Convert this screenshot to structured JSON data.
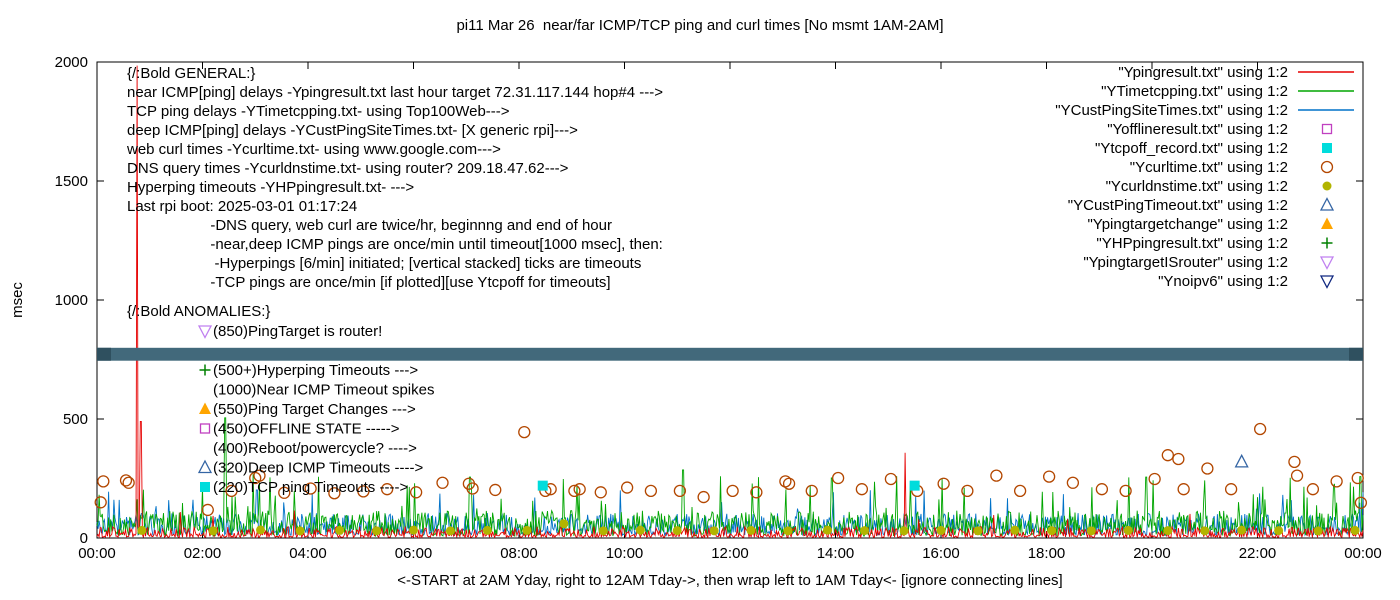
{
  "title": "pi11 Mar 26  near/far ICMP/TCP ping and curl times [No msmt 1AM-2AM]",
  "xlabel": "<-START at 2AM Yday, right to 12AM Tday->, then wrap left to 1AM Tday<- [ignore connecting lines]",
  "ylabel": "msec",
  "legend": [
    {
      "label": "\"Ypingresult.txt\" using 1:2",
      "marker": "line",
      "color": "#e60000"
    },
    {
      "label": "\"YTimetcpping.txt\" using 1:2",
      "marker": "line",
      "color": "#00a500"
    },
    {
      "label": "\"YCustPingSiteTimes.txt\" using 1:2",
      "marker": "line",
      "color": "#0072c8"
    },
    {
      "label": "\"Yofflineresult.txt\" using 1:2",
      "marker": "square-open",
      "color": "#c040c0"
    },
    {
      "label": "\"Ytcpoff_record.txt\" using 1:2",
      "marker": "square-filled",
      "color": "#00dcdc"
    },
    {
      "label": "\"Ycurltime.txt\" using 1:2",
      "marker": "circle-open",
      "color": "#b34700"
    },
    {
      "label": "\"Ycurldnstime.txt\" using 1:2",
      "marker": "circle-filled",
      "color": "#b2b400"
    },
    {
      "label": "\"YCustPingTimeout.txt\" using 1:2",
      "marker": "triangle-open",
      "color": "#3465a4"
    },
    {
      "label": "\"Ypingtargetchange\" using 1:2",
      "marker": "triangle-filled",
      "color": "#ffa500"
    },
    {
      "label": "\"YHPpingresult.txt\" using 1:2",
      "marker": "plus",
      "color": "#008000"
    },
    {
      "label": "\"YpingtargetISrouter\" using 1:2",
      "marker": "triangle-down-open",
      "color": "#c080f0"
    },
    {
      "label": "\"Ynoipv6\" using 1:2",
      "marker": "triangle-down-open",
      "color": "#102880"
    }
  ],
  "annotations": {
    "general_header": "{/:Bold GENERAL:}",
    "general": [
      "near ICMP[ping] delays -Ypingresult.txt last hour target 72.31.117.144 hop#4 --->",
      "TCP ping delays -YTimetcpping.txt- using Top100Web--->",
      "deep ICMP[ping] delays -YCustPingSiteTimes.txt- [X generic rpi]--->",
      "web curl times -Ycurltime.txt- using www.google.com--->",
      "DNS query times -Ycurldnstime.txt- using router? 209.18.47.62--->",
      "Hyperping timeouts -YHPpingresult.txt- --->",
      "Last rpi boot: 2025-03-01 01:17:24",
      "                    -DNS query, web curl are twice/hr, beginnng and end of hour",
      "                    -near,deep ICMP pings are once/min until timeout[1000 msec], then:",
      "                     -Hyperpings [6/min] initiated; [vertical stacked] ticks are timeouts",
      "                    -TCP pings are once/min [if plotted][use Ytcpoff for timeouts]"
    ],
    "anomalies_header": "{/:Bold ANOMALIES:}",
    "anomalies": [
      {
        "row": 0,
        "icon": "triangle-down-open",
        "color": "#c080f0",
        "text": "(850)PingTarget is router!"
      },
      {
        "row": 2,
        "icon": "plus",
        "color": "#008000",
        "text": "(500+)Hyperping Timeouts --->"
      },
      {
        "row": 3,
        "icon": null,
        "color": null,
        "text": "(1000)Near ICMP Timeout spikes"
      },
      {
        "row": 4,
        "icon": "triangle-filled",
        "color": "#ffa500",
        "text": "(550)Ping Target Changes --->"
      },
      {
        "row": 5,
        "icon": "square-open",
        "color": "#c040c0",
        "text": "(450)OFFLINE STATE ----->"
      },
      {
        "row": 6,
        "icon": null,
        "color": null,
        "text": "(400)Reboot/powercycle? ---->"
      },
      {
        "row": 7,
        "icon": "triangle-open",
        "color": "#3465a4",
        "text": "(320)Deep ICMP Timeouts ---->"
      },
      {
        "row": 8,
        "icon": "square-filled",
        "color": "#00dcdc",
        "text": "(220)TCP ping Timeouts ---->"
      }
    ]
  },
  "chart_data": {
    "type": "line",
    "xlim": [
      0,
      24
    ],
    "ylim": [
      0,
      2000
    ],
    "x_ticks": [
      "00:00",
      "02:00",
      "04:00",
      "06:00",
      "08:00",
      "10:00",
      "12:00",
      "14:00",
      "16:00",
      "18:00",
      "20:00",
      "22:00",
      "00:00"
    ],
    "y_ticks": [
      0,
      500,
      1000,
      1500,
      2000
    ],
    "legend_position": "top-right-inside",
    "grid": false,
    "band": {
      "name": "stacked-timeout-band",
      "y_msec": 772,
      "half_msec": 27,
      "color": "#42697b",
      "cap_color": "#2f505f"
    },
    "series": [
      {
        "name": "YCustPingSiteTimes",
        "type": "line",
        "color": "#0072c8",
        "baseline": [
          12,
          105
        ],
        "noise_pow": 1.6,
        "minor_spikes": {
          "every_h": 1.4,
          "range": [
            120,
            205
          ]
        },
        "spikes": [
          [
            0.42,
            160
          ],
          [
            3.03,
            202
          ],
          [
            8.3,
            170
          ]
        ]
      },
      {
        "name": "YTimetcpping",
        "type": "line",
        "color": "#00a500",
        "baseline": [
          8,
          115
        ],
        "noise_pow": 1.35,
        "minor_spikes": {
          "every_h": 0.38,
          "range": [
            120,
            260
          ]
        },
        "spikes": [
          [
            2.43,
            505
          ],
          [
            2.96,
            268
          ],
          [
            7.07,
            256
          ],
          [
            11.11,
            286
          ],
          [
            13.93,
            252
          ],
          [
            16.02,
            248
          ],
          [
            19.89,
            256
          ],
          [
            21.0,
            242
          ],
          [
            23.95,
            258
          ]
        ]
      },
      {
        "name": "Ypingresult",
        "type": "line",
        "color": "#e60000",
        "baseline": [
          3,
          48
        ],
        "noise_pow": 2.0,
        "minor_spikes": {
          "every_h": 2.5,
          "range": [
            60,
            130
          ]
        },
        "spikes": [
          [
            0.76,
            1985
          ],
          [
            0.83,
            490
          ],
          [
            15.32,
            358
          ]
        ]
      },
      {
        "name": "Ycurltime",
        "type": "scatter",
        "marker": "circle-open",
        "color": "#b34700",
        "points": [
          [
            0.07,
            150
          ],
          [
            0.12,
            238
          ],
          [
            0.55,
            242
          ],
          [
            0.6,
            232
          ],
          [
            2.1,
            118
          ],
          [
            2.55,
            198
          ],
          [
            3.0,
            252
          ],
          [
            3.08,
            262
          ],
          [
            3.55,
            190
          ],
          [
            4.05,
            208
          ],
          [
            4.5,
            188
          ],
          [
            5.05,
            196
          ],
          [
            5.5,
            205
          ],
          [
            6.05,
            192
          ],
          [
            6.55,
            232
          ],
          [
            7.05,
            228
          ],
          [
            7.12,
            208
          ],
          [
            7.55,
            202
          ],
          [
            8.1,
            445
          ],
          [
            8.5,
            198
          ],
          [
            8.6,
            205
          ],
          [
            9.05,
            198
          ],
          [
            9.15,
            205
          ],
          [
            9.55,
            192
          ],
          [
            10.05,
            212
          ],
          [
            10.5,
            198
          ],
          [
            11.05,
            198
          ],
          [
            11.5,
            172
          ],
          [
            12.05,
            198
          ],
          [
            12.5,
            192
          ],
          [
            13.05,
            238
          ],
          [
            13.12,
            228
          ],
          [
            13.55,
            198
          ],
          [
            14.05,
            252
          ],
          [
            14.5,
            205
          ],
          [
            15.05,
            248
          ],
          [
            15.55,
            198
          ],
          [
            16.05,
            228
          ],
          [
            16.5,
            198
          ],
          [
            17.05,
            262
          ],
          [
            17.5,
            198
          ],
          [
            18.05,
            258
          ],
          [
            18.5,
            232
          ],
          [
            19.05,
            205
          ],
          [
            19.5,
            198
          ],
          [
            20.05,
            248
          ],
          [
            20.3,
            348
          ],
          [
            20.5,
            332
          ],
          [
            20.6,
            205
          ],
          [
            21.05,
            292
          ],
          [
            21.5,
            205
          ],
          [
            22.05,
            458
          ],
          [
            22.7,
            320
          ],
          [
            22.75,
            262
          ],
          [
            23.05,
            205
          ],
          [
            23.5,
            238
          ],
          [
            23.9,
            252
          ],
          [
            23.96,
            148
          ]
        ]
      },
      {
        "name": "Ycurldnstime",
        "type": "scatter",
        "marker": "circle-filled",
        "color": "#b2b400",
        "points": [
          [
            0.85,
            32
          ],
          [
            2.2,
            30
          ],
          [
            3.1,
            34
          ],
          [
            3.85,
            30
          ],
          [
            4.6,
            32
          ],
          [
            5.3,
            30
          ],
          [
            6.0,
            33
          ],
          [
            6.7,
            30
          ],
          [
            7.4,
            32
          ],
          [
            8.15,
            32
          ],
          [
            8.85,
            60
          ],
          [
            9.6,
            30
          ],
          [
            10.3,
            33
          ],
          [
            11.0,
            31
          ],
          [
            11.7,
            30
          ],
          [
            12.4,
            32
          ],
          [
            13.1,
            30
          ],
          [
            13.85,
            33
          ],
          [
            14.55,
            31
          ],
          [
            15.3,
            30
          ],
          [
            16.0,
            32
          ],
          [
            16.7,
            30
          ],
          [
            17.4,
            33
          ],
          [
            18.1,
            31
          ],
          [
            18.85,
            30
          ],
          [
            19.55,
            32
          ],
          [
            20.3,
            31
          ],
          [
            21.0,
            30
          ],
          [
            21.7,
            33
          ],
          [
            22.4,
            31
          ],
          [
            23.15,
            30
          ],
          [
            23.85,
            32
          ]
        ]
      },
      {
        "name": "Ytcpoff_record",
        "type": "scatter",
        "marker": "square-filled",
        "color": "#00dcdc",
        "points": [
          [
            8.45,
            220
          ],
          [
            15.5,
            220
          ]
        ]
      },
      {
        "name": "YCustPingTimeout",
        "type": "scatter",
        "marker": "triangle-open",
        "color": "#3465a4",
        "points": [
          [
            21.7,
            320
          ]
        ]
      }
    ]
  }
}
